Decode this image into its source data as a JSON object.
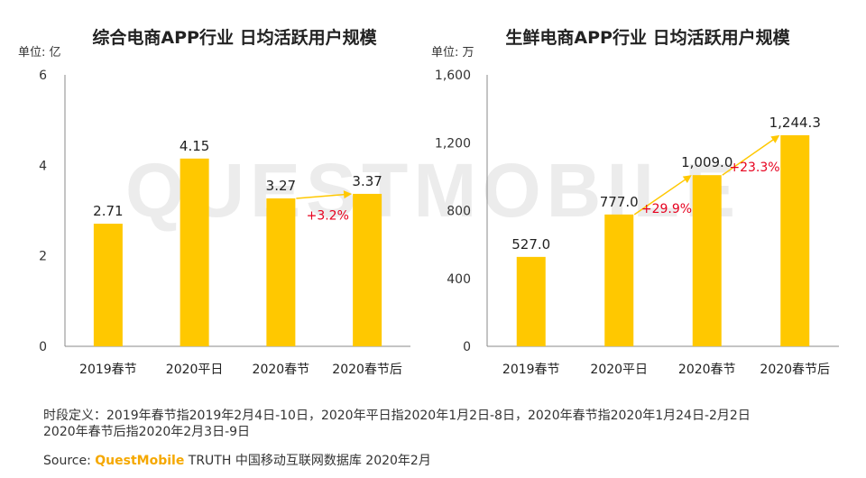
{
  "colors": {
    "bar": "#ffc800",
    "arrow": "#ffc800",
    "growth": "#e6001e",
    "axis": "#888888",
    "text": "#222222",
    "watermark": "#ececec"
  },
  "watermark": "QUESTMOBILE",
  "chart_data": [
    {
      "type": "bar",
      "title": "综合电商APP行业 日均活跃用户规模",
      "unit": "单位: 亿",
      "categories": [
        "2019春节",
        "2020平日",
        "2020春节",
        "2020春节后"
      ],
      "values": [
        2.71,
        4.15,
        3.27,
        3.37
      ],
      "value_labels": [
        "2.71",
        "4.15",
        "3.27",
        "3.37"
      ],
      "ylim": [
        0,
        6
      ],
      "yticks": [
        0,
        2,
        4,
        6
      ],
      "ytick_labels": [
        "0",
        "2",
        "4",
        "6"
      ],
      "growth": [
        {
          "from": 2,
          "to": 3,
          "label": "+3.2%"
        }
      ]
    },
    {
      "type": "bar",
      "title": "生鲜电商APP行业 日均活跃用户规模",
      "unit": "单位: 万",
      "categories": [
        "2019春节",
        "2020平日",
        "2020春节",
        "2020春节后"
      ],
      "values": [
        527.0,
        777.0,
        1009.0,
        1244.3
      ],
      "value_labels": [
        "527.0",
        "777.0",
        "1,009.0",
        "1,244.3"
      ],
      "ylim": [
        0,
        1600
      ],
      "yticks": [
        0,
        400,
        800,
        1200,
        1600
      ],
      "ytick_labels": [
        "0",
        "400",
        "800",
        "1,200",
        "1,600"
      ],
      "growth": [
        {
          "from": 1,
          "to": 2,
          "label": "+29.9%"
        },
        {
          "from": 2,
          "to": 3,
          "label": "+23.3%"
        }
      ]
    }
  ],
  "footnote": {
    "line1": "时段定义：2019年春节指2019年2月4日-10日，2020年平日指2020年1月2日-8日，2020年春节指2020年1月24日-2月2日",
    "line2": "2020年春节后指2020年2月3日-9日"
  },
  "source": {
    "label": "Source:",
    "brand": "QuestMobile",
    "rest": "TRUTH 中国移动互联网数据库 2020年2月"
  }
}
